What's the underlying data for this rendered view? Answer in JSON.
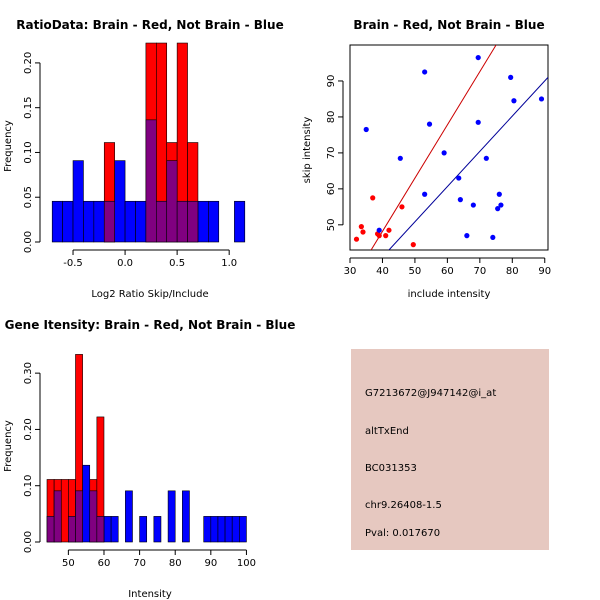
{
  "colors": {
    "red": "#ff0000",
    "blue": "#0000ff",
    "overlap": "#800080",
    "red_line": "#cc0000",
    "blue_line": "#000099",
    "info_bg": "#e6c8c0",
    "pval": "#aa0000"
  },
  "chart_data": [
    {
      "id": "ratio",
      "type": "histogram",
      "title": "RatioData: Brain - Red, Not Brain - Blue",
      "xlabel": "Log2 Ratio Skip/Include",
      "ylabel": "Frequency",
      "xlim": [
        -0.75,
        1.2
      ],
      "ylim": [
        0,
        0.22
      ],
      "xticks": [
        -0.5,
        0.0,
        0.5,
        1.0
      ],
      "xtick_labels": [
        "-0.5",
        "0.0",
        "0.5",
        "1.0"
      ],
      "yticks": [
        0.0,
        0.05,
        0.1,
        0.15,
        0.2
      ],
      "ytick_labels": [
        "0.00",
        "0.05",
        "0.10",
        "0.15",
        "0.20"
      ],
      "series": [
        {
          "name": "Not Brain",
          "color": "blue",
          "bins": [
            {
              "x0": -0.7,
              "x1": -0.6,
              "value": 0.0455
            },
            {
              "x0": -0.6,
              "x1": -0.5,
              "value": 0.0455
            },
            {
              "x0": -0.5,
              "x1": -0.4,
              "value": 0.0909
            },
            {
              "x0": -0.4,
              "x1": -0.3,
              "value": 0.0455
            },
            {
              "x0": -0.3,
              "x1": -0.2,
              "value": 0.0455
            },
            {
              "x0": -0.2,
              "x1": -0.1,
              "value": 0.0455
            },
            {
              "x0": -0.1,
              "x1": 0.0,
              "value": 0.0909
            },
            {
              "x0": 0.0,
              "x1": 0.1,
              "value": 0.0455
            },
            {
              "x0": 0.1,
              "x1": 0.2,
              "value": 0.0455
            },
            {
              "x0": 0.2,
              "x1": 0.3,
              "value": 0.1364
            },
            {
              "x0": 0.3,
              "x1": 0.4,
              "value": 0.0455
            },
            {
              "x0": 0.4,
              "x1": 0.5,
              "value": 0.0909
            },
            {
              "x0": 0.5,
              "x1": 0.6,
              "value": 0.0455
            },
            {
              "x0": 0.6,
              "x1": 0.7,
              "value": 0.0455
            },
            {
              "x0": 0.7,
              "x1": 0.8,
              "value": 0.0455
            },
            {
              "x0": 0.8,
              "x1": 0.9,
              "value": 0.0455
            },
            {
              "x0": 1.05,
              "x1": 1.15,
              "value": 0.0455
            }
          ]
        },
        {
          "name": "Brain",
          "color": "red",
          "bins": [
            {
              "x0": -0.2,
              "x1": -0.1,
              "value": 0.1111
            },
            {
              "x0": 0.2,
              "x1": 0.3,
              "value": 0.2222
            },
            {
              "x0": 0.3,
              "x1": 0.4,
              "value": 0.2222
            },
            {
              "x0": 0.4,
              "x1": 0.5,
              "value": 0.1111
            },
            {
              "x0": 0.5,
              "x1": 0.6,
              "value": 0.2222
            },
            {
              "x0": 0.6,
              "x1": 0.7,
              "value": 0.1111
            }
          ]
        }
      ]
    },
    {
      "id": "scatter",
      "type": "scatter",
      "title": "Brain - Red, Not Brain - Blue",
      "xlabel": "include intensity",
      "ylabel": "skip intensity",
      "xlim": [
        30,
        91
      ],
      "ylim": [
        43,
        100
      ],
      "xticks": [
        30,
        40,
        50,
        60,
        70,
        80,
        90
      ],
      "xtick_labels": [
        "30",
        "40",
        "50",
        "60",
        "70",
        "80",
        "90"
      ],
      "yticks": [
        50,
        60,
        70,
        80,
        90
      ],
      "ytick_labels": [
        "50",
        "60",
        "70",
        "80",
        "90"
      ],
      "series": [
        {
          "name": "Brain",
          "color": "red",
          "points": [
            [
              32,
              46
            ],
            [
              33.5,
              49.5
            ],
            [
              34,
              48
            ],
            [
              37,
              57.5
            ],
            [
              38.5,
              47.5
            ],
            [
              39,
              47
            ],
            [
              41,
              47
            ],
            [
              42,
              48.5
            ],
            [
              46,
              55
            ],
            [
              49.5,
              44.5
            ]
          ]
        },
        {
          "name": "Not Brain",
          "color": "blue",
          "points": [
            [
              35,
              76.5
            ],
            [
              39,
              48.5
            ],
            [
              45.5,
              68.5
            ],
            [
              53,
              92.5
            ],
            [
              53,
              58.5
            ],
            [
              54.5,
              78
            ],
            [
              59,
              70
            ],
            [
              63.5,
              63
            ],
            [
              64,
              57
            ],
            [
              66,
              47
            ],
            [
              68,
              55.5
            ],
            [
              69.5,
              96.5
            ],
            [
              69.5,
              78.5
            ],
            [
              72,
              68.5
            ],
            [
              74,
              46.5
            ],
            [
              75.5,
              54.5
            ],
            [
              76,
              58.5
            ],
            [
              76.5,
              55.5
            ],
            [
              79.5,
              91
            ],
            [
              80.5,
              84.5
            ],
            [
              89,
              85
            ]
          ]
        }
      ],
      "lines": [
        {
          "name": "Brain fit",
          "color": "red_line",
          "from": [
            36.5,
            43
          ],
          "to": [
            75,
            100
          ]
        },
        {
          "name": "Not Brain fit",
          "color": "blue_line",
          "from": [
            42,
            43
          ],
          "to": [
            91,
            91
          ]
        }
      ]
    },
    {
      "id": "gene",
      "type": "histogram",
      "title": "Gene Itensity: Brain - Red, Not Brain - Blue",
      "xlabel": "Intensity",
      "ylabel": "Frequency",
      "xlim": [
        44,
        101
      ],
      "ylim": [
        0,
        0.35
      ],
      "xticks": [
        50,
        60,
        70,
        80,
        90,
        100
      ],
      "xtick_labels": [
        "50",
        "60",
        "70",
        "80",
        "90",
        "100"
      ],
      "yticks": [
        0.0,
        0.1,
        0.2,
        0.3
      ],
      "ytick_labels": [
        "0.00",
        "0.10",
        "0.20",
        "0.30"
      ],
      "series": [
        {
          "name": "Not Brain",
          "color": "blue",
          "bins": [
            {
              "x0": 44,
              "x1": 46,
              "value": 0.0455
            },
            {
              "x0": 46,
              "x1": 48,
              "value": 0.0909
            },
            {
              "x0": 50,
              "x1": 52,
              "value": 0.0455
            },
            {
              "x0": 52,
              "x1": 54,
              "value": 0.0909
            },
            {
              "x0": 54,
              "x1": 56,
              "value": 0.1364
            },
            {
              "x0": 56,
              "x1": 58,
              "value": 0.0909
            },
            {
              "x0": 58,
              "x1": 60,
              "value": 0.0455
            },
            {
              "x0": 60,
              "x1": 62,
              "value": 0.0455
            },
            {
              "x0": 62,
              "x1": 64,
              "value": 0.0455
            },
            {
              "x0": 66,
              "x1": 68,
              "value": 0.0909
            },
            {
              "x0": 70,
              "x1": 72,
              "value": 0.0455
            },
            {
              "x0": 74,
              "x1": 76,
              "value": 0.0455
            },
            {
              "x0": 78,
              "x1": 80,
              "value": 0.0909
            },
            {
              "x0": 82,
              "x1": 84,
              "value": 0.0909
            },
            {
              "x0": 88,
              "x1": 90,
              "value": 0.0455
            },
            {
              "x0": 90,
              "x1": 92,
              "value": 0.0455
            },
            {
              "x0": 92,
              "x1": 94,
              "value": 0.0455
            },
            {
              "x0": 94,
              "x1": 96,
              "value": 0.0455
            },
            {
              "x0": 96,
              "x1": 98,
              "value": 0.0455
            },
            {
              "x0": 98,
              "x1": 100,
              "value": 0.0455
            }
          ]
        },
        {
          "name": "Brain",
          "color": "red",
          "bins": [
            {
              "x0": 44,
              "x1": 46,
              "value": 0.1111
            },
            {
              "x0": 46,
              "x1": 48,
              "value": 0.1111
            },
            {
              "x0": 48,
              "x1": 50,
              "value": 0.1111
            },
            {
              "x0": 50,
              "x1": 52,
              "value": 0.1111
            },
            {
              "x0": 52,
              "x1": 54,
              "value": 0.3333
            },
            {
              "x0": 56,
              "x1": 58,
              "value": 0.1111
            },
            {
              "x0": 58,
              "x1": 60,
              "value": 0.2222
            }
          ]
        }
      ]
    }
  ],
  "info": {
    "probe": "G7213672@J947142@i_at",
    "event": "altTxEnd",
    "accession": "BC031353",
    "location": "chr9.26408-1.5",
    "pval": "Pval: 0.017670"
  }
}
